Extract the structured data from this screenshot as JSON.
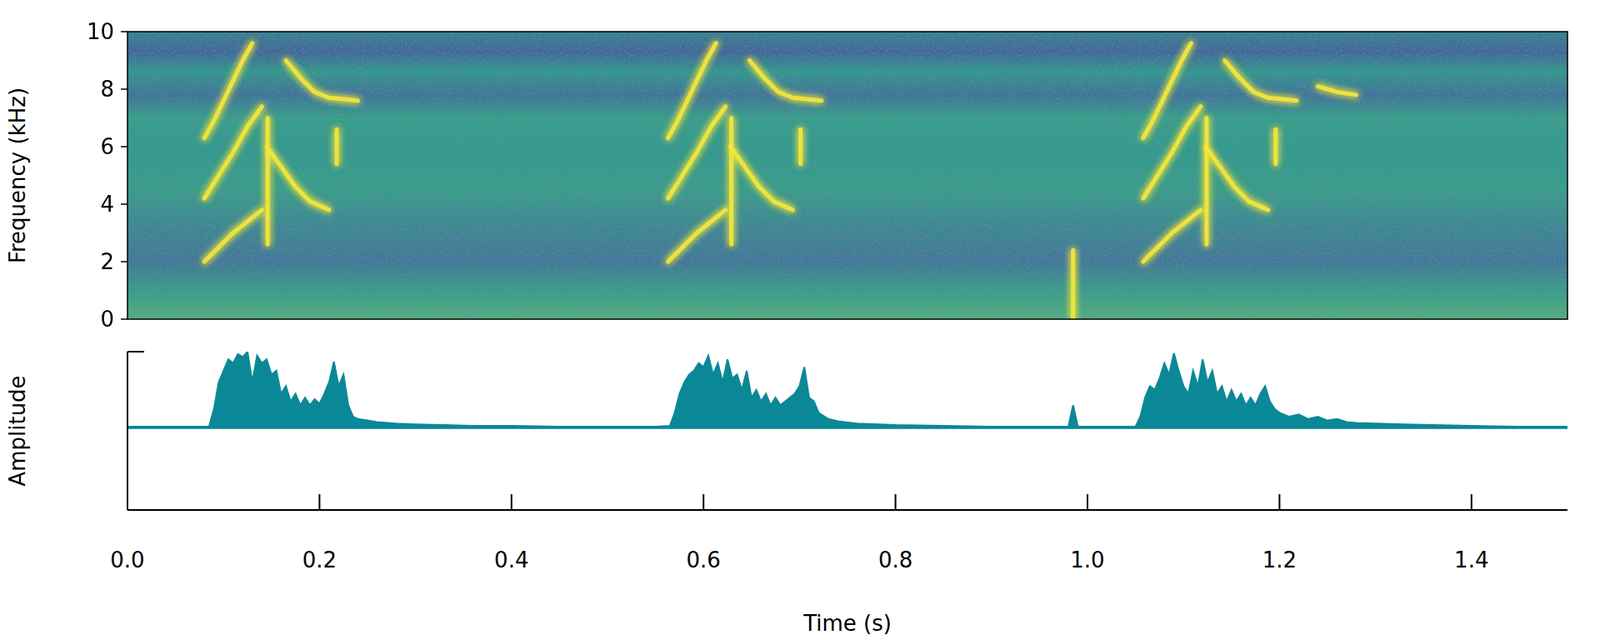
{
  "chart_data": [
    {
      "type": "spectrogram",
      "y_label": "Frequency (kHz)",
      "xlim": [
        0,
        1.5
      ],
      "ylim": [
        0,
        10
      ],
      "yticks": [
        0,
        2,
        4,
        6,
        8,
        10
      ],
      "tick_labels": "y",
      "color": "#f4e53c",
      "series": [
        {
          "x": [
            0.08,
            0.095,
            0.11,
            0.125,
            0.14
          ],
          "values": [
            2.0,
            2.5,
            3.0,
            3.4,
            3.8
          ]
        },
        {
          "x": [
            0.08,
            0.095,
            0.11,
            0.125,
            0.14
          ],
          "values": [
            4.2,
            5.0,
            5.8,
            6.7,
            7.4
          ]
        },
        {
          "x": [
            0.08,
            0.09,
            0.1,
            0.11,
            0.12,
            0.13
          ],
          "values": [
            6.3,
            6.9,
            7.6,
            8.3,
            9.0,
            9.6
          ]
        },
        {
          "x": [
            0.145,
            0.16,
            0.175,
            0.19,
            0.21
          ],
          "values": [
            6.0,
            5.3,
            4.6,
            4.1,
            3.8
          ]
        },
        {
          "x": [
            0.165,
            0.18,
            0.195,
            0.21,
            0.24
          ],
          "values": [
            9.0,
            8.4,
            7.9,
            7.7,
            7.6
          ]
        },
        {
          "x": [
            0.146,
            0.146
          ],
          "values": [
            2.6,
            7.0
          ]
        },
        {
          "x": [
            0.218,
            0.218
          ],
          "values": [
            5.4,
            6.6
          ]
        },
        {
          "x": [
            0.563,
            0.578,
            0.593,
            0.608,
            0.623
          ],
          "values": [
            2.0,
            2.5,
            3.0,
            3.4,
            3.8
          ]
        },
        {
          "x": [
            0.563,
            0.578,
            0.593,
            0.608,
            0.623
          ],
          "values": [
            4.2,
            5.0,
            5.8,
            6.7,
            7.4
          ]
        },
        {
          "x": [
            0.563,
            0.573,
            0.583,
            0.593,
            0.603,
            0.613
          ],
          "values": [
            6.3,
            6.9,
            7.6,
            8.3,
            9.0,
            9.6
          ]
        },
        {
          "x": [
            0.628,
            0.643,
            0.658,
            0.673,
            0.693
          ],
          "values": [
            6.0,
            5.3,
            4.6,
            4.1,
            3.8
          ]
        },
        {
          "x": [
            0.648,
            0.663,
            0.678,
            0.693,
            0.723
          ],
          "values": [
            9.0,
            8.4,
            7.9,
            7.7,
            7.6
          ]
        },
        {
          "x": [
            0.629,
            0.629
          ],
          "values": [
            2.6,
            7.0
          ]
        },
        {
          "x": [
            0.701,
            0.701
          ],
          "values": [
            5.4,
            6.6
          ]
        },
        {
          "x": [
            0.985,
            0.985
          ],
          "values": [
            0,
            2.4
          ]
        },
        {
          "x": [
            1.058,
            1.073,
            1.088,
            1.103,
            1.118
          ],
          "values": [
            2.0,
            2.5,
            3.0,
            3.4,
            3.8
          ]
        },
        {
          "x": [
            1.058,
            1.073,
            1.088,
            1.103,
            1.118
          ],
          "values": [
            4.2,
            5.0,
            5.8,
            6.7,
            7.4
          ]
        },
        {
          "x": [
            1.058,
            1.068,
            1.078,
            1.088,
            1.098,
            1.108
          ],
          "values": [
            6.3,
            6.9,
            7.6,
            8.3,
            9.0,
            9.6
          ]
        },
        {
          "x": [
            1.123,
            1.138,
            1.153,
            1.168,
            1.188
          ],
          "values": [
            6.0,
            5.3,
            4.6,
            4.1,
            3.8
          ]
        },
        {
          "x": [
            1.143,
            1.158,
            1.173,
            1.188,
            1.218
          ],
          "values": [
            9.0,
            8.4,
            7.9,
            7.7,
            7.6
          ]
        },
        {
          "x": [
            1.124,
            1.124
          ],
          "values": [
            2.6,
            7.0
          ]
        },
        {
          "x": [
            1.196,
            1.196
          ],
          "values": [
            5.4,
            6.6
          ]
        },
        {
          "x": [
            1.24,
            1.26,
            1.28
          ],
          "values": [
            8.1,
            7.9,
            7.8
          ]
        }
      ]
    },
    {
      "type": "area",
      "y_label": "Amplitude",
      "x_label": "Time (s)",
      "xlim": [
        0,
        1.5
      ],
      "ylim": [
        -1.07,
        1
      ],
      "xticks": [
        {
          "value": 0,
          "label": "0.0"
        },
        0.2,
        0.4,
        0.6,
        0.8,
        {
          "value": 1,
          "label": "1.0"
        },
        1.2,
        1.4
      ],
      "yticks": [
        1
      ],
      "tick_labels": "x",
      "color": "#0b8897",
      "x": [
        0,
        0.04,
        0.08,
        0.085,
        0.09,
        0.095,
        0.1,
        0.105,
        0.11,
        0.115,
        0.12,
        0.125,
        0.13,
        0.135,
        0.14,
        0.145,
        0.15,
        0.155,
        0.16,
        0.165,
        0.17,
        0.175,
        0.18,
        0.185,
        0.19,
        0.195,
        0.2,
        0.205,
        0.21,
        0.215,
        0.22,
        0.225,
        0.23,
        0.235,
        0.24,
        0.25,
        0.26,
        0.28,
        0.3,
        0.33,
        0.36,
        0.4,
        0.45,
        0.5,
        0.55,
        0.565,
        0.57,
        0.575,
        0.58,
        0.585,
        0.59,
        0.595,
        0.6,
        0.605,
        0.61,
        0.615,
        0.62,
        0.625,
        0.63,
        0.635,
        0.64,
        0.645,
        0.65,
        0.655,
        0.66,
        0.665,
        0.67,
        0.675,
        0.68,
        0.685,
        0.69,
        0.695,
        0.7,
        0.705,
        0.71,
        0.715,
        0.72,
        0.73,
        0.74,
        0.76,
        0.8,
        0.85,
        0.9,
        0.95,
        0.98,
        0.985,
        0.99,
        1.05,
        1.055,
        1.06,
        1.065,
        1.07,
        1.075,
        1.08,
        1.085,
        1.09,
        1.095,
        1.1,
        1.105,
        1.11,
        1.115,
        1.12,
        1.125,
        1.13,
        1.135,
        1.14,
        1.145,
        1.15,
        1.155,
        1.16,
        1.165,
        1.17,
        1.175,
        1.18,
        1.185,
        1.19,
        1.195,
        1.2,
        1.21,
        1.22,
        1.23,
        1.24,
        1.25,
        1.26,
        1.27,
        1.28,
        1.3,
        1.33,
        1.36,
        1.4,
        1.45,
        1.5
      ],
      "values": [
        0.02,
        0.02,
        0.02,
        0.02,
        0.25,
        0.6,
        0.75,
        0.9,
        0.85,
        0.97,
        0.93,
        1,
        0.6,
        0.95,
        0.85,
        0.9,
        0.7,
        0.75,
        0.45,
        0.55,
        0.35,
        0.45,
        0.3,
        0.4,
        0.3,
        0.38,
        0.32,
        0.45,
        0.6,
        0.87,
        0.55,
        0.7,
        0.3,
        0.15,
        0.12,
        0.1,
        0.08,
        0.06,
        0.05,
        0.04,
        0.03,
        0.03,
        0.02,
        0.02,
        0.02,
        0.03,
        0.2,
        0.45,
        0.6,
        0.7,
        0.75,
        0.85,
        0.8,
        0.95,
        0.7,
        0.85,
        0.6,
        0.9,
        0.65,
        0.7,
        0.5,
        0.75,
        0.4,
        0.5,
        0.35,
        0.45,
        0.3,
        0.4,
        0.3,
        0.35,
        0.4,
        0.45,
        0.55,
        0.8,
        0.4,
        0.35,
        0.2,
        0.12,
        0.09,
        0.06,
        0.04,
        0.03,
        0.02,
        0.02,
        0.02,
        0.3,
        0.02,
        0.02,
        0.15,
        0.4,
        0.55,
        0.5,
        0.65,
        0.85,
        0.7,
        0.98,
        0.75,
        0.55,
        0.45,
        0.75,
        0.55,
        0.9,
        0.6,
        0.75,
        0.45,
        0.55,
        0.35,
        0.5,
        0.35,
        0.45,
        0.3,
        0.4,
        0.3,
        0.45,
        0.55,
        0.35,
        0.25,
        0.2,
        0.15,
        0.18,
        0.12,
        0.15,
        0.1,
        0.12,
        0.08,
        0.07,
        0.06,
        0.05,
        0.04,
        0.03,
        0.02,
        0.02
      ]
    }
  ]
}
